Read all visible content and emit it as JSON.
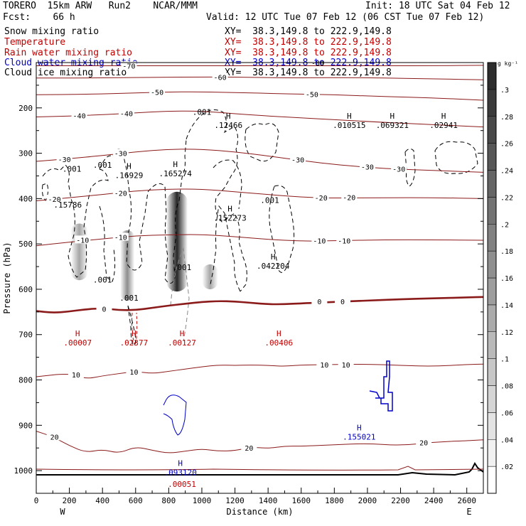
{
  "header": {
    "model": "TORERO  15km ARW   Run2    NCAR/MMM",
    "init": "Init: 18 UTC Sat 04 Feb 12",
    "fcst": "Fcst:    66 h",
    "valid": "Valid: 12 UTC Tue 07 Feb 12 (06 CST Tue 07 Feb 12)",
    "fields": [
      {
        "name": "Snow mixing ratio",
        "xy": "XY=  38.3,149.8 to 222.9,149.8",
        "color": "#000000"
      },
      {
        "name": "Temperature",
        "xy": "XY=  38.3,149.8 to 222.9,149.8",
        "color": "#c00000"
      },
      {
        "name": "Rain water mixing ratio",
        "xy": "XY=  38.3,149.8 to 222.9,149.8",
        "color": "#c00000"
      },
      {
        "name": "Cloud water mixing ratio",
        "xy": "XY=  38.3,149.8 to 222.9,149.8",
        "color": "#0000c8"
      },
      {
        "name": "Cloud ice mixing ratio",
        "xy": "XY=  38.3,149.8 to 222.9,149.8",
        "color": "#000000"
      }
    ]
  },
  "chart_data": {
    "type": "cross-section",
    "xlabel": "Distance (km)",
    "ylabel": "Pressure (hPa)",
    "xlim": [
      0,
      2700
    ],
    "ylim": [
      1050,
      100
    ],
    "xticks": [
      "0",
      "200",
      "400",
      "600",
      "800",
      "1000",
      "1200",
      "1400",
      "1600",
      "1800",
      "2000",
      "2200",
      "2400",
      "2600"
    ],
    "yticks": [
      "200",
      "300",
      "400",
      "500",
      "600",
      "700",
      "800",
      "900",
      "1000"
    ],
    "end_labels": {
      "left": "W",
      "right": "E"
    },
    "colorbar": {
      "unit": "g kg⁻¹",
      "ticks": [
        ".02",
        ".04",
        ".06",
        ".08",
        ".1",
        ".12",
        ".14",
        ".16",
        ".18",
        ".2",
        ".22",
        ".24",
        ".26",
        ".28",
        ".3"
      ],
      "vmin": 0.0,
      "vmax": 0.32
    },
    "temperature_contours": [
      {
        "value": -70,
        "p": [
          [
            0,
            107
          ],
          [
            300,
            107
          ],
          [
            600,
            107
          ],
          [
            900,
            107
          ],
          [
            1200,
            107
          ],
          [
            1500,
            107
          ],
          [
            1800,
            107
          ],
          [
            2100,
            107
          ],
          [
            2400,
            107
          ],
          [
            2700,
            106
          ]
        ],
        "labels": [
          {
            "x": 560,
            "p": 107,
            "text": "-70"
          }
        ]
      },
      {
        "value": -60,
        "p": [
          [
            0,
            134
          ],
          [
            300,
            134
          ],
          [
            600,
            133
          ],
          [
            900,
            132
          ],
          [
            1200,
            132
          ],
          [
            1500,
            134
          ],
          [
            1800,
            133
          ],
          [
            2100,
            134
          ],
          [
            2400,
            136
          ],
          [
            2700,
            138
          ]
        ],
        "labels": [
          {
            "x": 1110,
            "p": 132,
            "text": "-60"
          }
        ]
      },
      {
        "value": -50,
        "p": [
          [
            0,
            171
          ],
          [
            300,
            170
          ],
          [
            600,
            167
          ],
          [
            900,
            164
          ],
          [
            1200,
            166
          ],
          [
            1500,
            169
          ],
          [
            1800,
            171
          ],
          [
            2100,
            175
          ],
          [
            2400,
            178
          ],
          [
            2700,
            183
          ]
        ],
        "labels": [
          {
            "x": 730,
            "p": 165,
            "text": "-50"
          },
          {
            "x": 1665,
            "p": 170,
            "text": "-50"
          }
        ]
      },
      {
        "value": -40,
        "p": [
          [
            0,
            220
          ],
          [
            200,
            218
          ],
          [
            400,
            215
          ],
          [
            600,
            211
          ],
          [
            800,
            207
          ],
          [
            1000,
            207
          ],
          [
            1200,
            213
          ],
          [
            1400,
            218
          ],
          [
            1600,
            222
          ],
          [
            1800,
            226
          ],
          [
            2100,
            232
          ],
          [
            2400,
            237
          ],
          [
            2700,
            242
          ]
        ],
        "labels": [
          {
            "x": 260,
            "p": 217,
            "text": "-40"
          },
          {
            "x": 545,
            "p": 212,
            "text": "-40"
          }
        ]
      },
      {
        "value": -30,
        "p": [
          [
            0,
            318
          ],
          [
            200,
            312
          ],
          [
            400,
            305
          ],
          [
            600,
            297
          ],
          [
            800,
            291
          ],
          [
            1000,
            291
          ],
          [
            1200,
            297
          ],
          [
            1400,
            306
          ],
          [
            1600,
            316
          ],
          [
            1800,
            325
          ],
          [
            2100,
            334
          ],
          [
            2400,
            338
          ],
          [
            2700,
            342
          ]
        ],
        "labels": [
          {
            "x": 170,
            "p": 313,
            "text": "-30"
          },
          {
            "x": 510,
            "p": 300,
            "text": "-30"
          },
          {
            "x": 1580,
            "p": 314,
            "text": "-30"
          },
          {
            "x": 2000,
            "p": 330,
            "text": "-30"
          },
          {
            "x": 2190,
            "p": 334,
            "text": "-30"
          }
        ]
      },
      {
        "value": -20,
        "p": [
          [
            0,
            405
          ],
          [
            200,
            398
          ],
          [
            400,
            391
          ],
          [
            600,
            383
          ],
          [
            800,
            379
          ],
          [
            1000,
            379
          ],
          [
            1200,
            385
          ],
          [
            1400,
            391
          ],
          [
            1600,
            397
          ],
          [
            1800,
            399
          ],
          [
            2100,
            398
          ],
          [
            2400,
            398
          ],
          [
            2700,
            400
          ]
        ],
        "labels": [
          {
            "x": 110,
            "p": 401,
            "text": "-20"
          },
          {
            "x": 510,
            "p": 388,
            "text": "-20"
          },
          {
            "x": 1720,
            "p": 398,
            "text": "-20"
          },
          {
            "x": 1890,
            "p": 397,
            "text": "-20"
          }
        ]
      },
      {
        "value": -10,
        "p": [
          [
            0,
            504
          ],
          [
            200,
            496
          ],
          [
            400,
            489
          ],
          [
            600,
            482
          ],
          [
            800,
            480
          ],
          [
            1000,
            479
          ],
          [
            1200,
            484
          ],
          [
            1400,
            490
          ],
          [
            1600,
            494
          ],
          [
            1800,
            493
          ],
          [
            2100,
            491
          ],
          [
            2400,
            491
          ],
          [
            2700,
            492
          ]
        ],
        "labels": [
          {
            "x": 280,
            "p": 491,
            "text": "-10"
          },
          {
            "x": 510,
            "p": 485,
            "text": "-10"
          },
          {
            "x": 1710,
            "p": 493,
            "text": "-10"
          },
          {
            "x": 1860,
            "p": 493,
            "text": "-10"
          }
        ]
      },
      {
        "value": 0,
        "p": [
          [
            0,
            648
          ],
          [
            100,
            652
          ],
          [
            200,
            649
          ],
          [
            300,
            644
          ],
          [
            400,
            642
          ],
          [
            500,
            646
          ],
          [
            600,
            646
          ],
          [
            700,
            641
          ],
          [
            800,
            636
          ],
          [
            900,
            632
          ],
          [
            1000,
            628
          ],
          [
            1100,
            626
          ],
          [
            1200,
            627
          ],
          [
            1300,
            630
          ],
          [
            1400,
            633
          ],
          [
            1500,
            633
          ],
          [
            1600,
            631
          ],
          [
            1800,
            628
          ],
          [
            2000,
            625
          ],
          [
            2200,
            622
          ],
          [
            2400,
            620
          ],
          [
            2600,
            618
          ],
          [
            2700,
            617
          ]
        ],
        "labels": [
          {
            "x": 410,
            "p": 643,
            "text": "0"
          },
          {
            "x": 1710,
            "p": 627,
            "text": "0"
          },
          {
            "x": 1850,
            "p": 627,
            "text": "0"
          }
        ]
      },
      {
        "value": 10,
        "p": [
          [
            0,
            793
          ],
          [
            200,
            785
          ],
          [
            300,
            798
          ],
          [
            400,
            791
          ],
          [
            500,
            786
          ],
          [
            600,
            781
          ],
          [
            700,
            786
          ],
          [
            800,
            781
          ],
          [
            900,
            776
          ],
          [
            1000,
            771
          ],
          [
            1100,
            767
          ],
          [
            1200,
            768
          ],
          [
            1300,
            767
          ],
          [
            1400,
            768
          ],
          [
            1500,
            770
          ],
          [
            1600,
            767
          ],
          [
            1800,
            766
          ],
          [
            2000,
            765
          ],
          [
            2200,
            768
          ],
          [
            2400,
            770
          ],
          [
            2600,
            766
          ],
          [
            2700,
            765
          ]
        ],
        "labels": [
          {
            "x": 240,
            "p": 788,
            "text": "10"
          },
          {
            "x": 590,
            "p": 782,
            "text": "10"
          },
          {
            "x": 1740,
            "p": 766,
            "text": "10"
          },
          {
            "x": 1870,
            "p": 766,
            "text": "10"
          }
        ]
      },
      {
        "value": 20,
        "p": [
          [
            0,
            913
          ],
          [
            100,
            925
          ],
          [
            200,
            945
          ],
          [
            300,
            960
          ],
          [
            400,
            953
          ],
          [
            500,
            962
          ],
          [
            600,
            947
          ],
          [
            700,
            955
          ],
          [
            800,
            962
          ],
          [
            900,
            957
          ],
          [
            1000,
            952
          ],
          [
            1100,
            957
          ],
          [
            1200,
            956
          ],
          [
            1300,
            948
          ],
          [
            1400,
            951
          ],
          [
            1500,
            946
          ],
          [
            1600,
            946
          ],
          [
            1800,
            943
          ],
          [
            2000,
            940
          ],
          [
            2200,
            945
          ],
          [
            2400,
            937
          ],
          [
            2600,
            934
          ],
          [
            2700,
            932
          ]
        ],
        "labels": [
          {
            "x": 110,
            "p": 925,
            "text": "20"
          },
          {
            "x": 1285,
            "p": 950,
            "text": "20"
          },
          {
            "x": 2340,
            "p": 938,
            "text": "20"
          }
        ]
      }
    ],
    "upper_contour_labels": [
      {
        "x": 1700,
        "p": 101,
        "text": "-80"
      }
    ],
    "rain_water": {
      "color": "#c00000",
      "maxima": [
        {
          "x": 250,
          "p": 724,
          "text": ".00007",
          "h": "H"
        },
        {
          "x": 590,
          "p": 724,
          "text": ".02377",
          "h": "H"
        },
        {
          "x": 880,
          "p": 724,
          "text": ".00127",
          "h": "H"
        },
        {
          "x": 1465,
          "p": 724,
          "text": ".00406",
          "h": "H"
        },
        {
          "x": 880,
          "p": 1036,
          "text": ".00051",
          "h": ""
        }
      ]
    },
    "cloud_water": {
      "color": "#0000c8",
      "maxima": [
        {
          "x": 870,
          "p": 1010,
          "text": ".093120",
          "h": "H"
        },
        {
          "x": 1950,
          "p": 932,
          "text": ".155021",
          "h": "H"
        }
      ]
    },
    "cloud_ice": {
      "color": "#000000",
      "maxima": [
        {
          "x": 215,
          "p": 341,
          "text": ".001",
          "h": ""
        },
        {
          "x": 1000,
          "p": 215,
          "text": ".001",
          "h": ""
        },
        {
          "x": 1160,
          "p": 244,
          "text": ".12466",
          "h": "H"
        },
        {
          "x": 1890,
          "p": 244,
          "text": ".010515",
          "h": "H"
        },
        {
          "x": 2150,
          "p": 244,
          "text": ".069321",
          "h": "H"
        },
        {
          "x": 2460,
          "p": 244,
          "text": ".02941",
          "h": "H"
        }
      ]
    },
    "snow": {
      "color": "#000000",
      "maxima": [
        {
          "x": 190,
          "p": 420,
          "text": ".15786",
          "h": ""
        },
        {
          "x": 560,
          "p": 355,
          "text": ".16929",
          "h": "H"
        },
        {
          "x": 840,
          "p": 351,
          "text": ".165274",
          "h": "H"
        },
        {
          "x": 1170,
          "p": 449,
          "text": ".152273",
          "h": "H"
        },
        {
          "x": 1430,
          "p": 555,
          "text": ".042204",
          "h": "H"
        },
        {
          "x": 1410,
          "p": 410,
          "text": ".001",
          "h": ""
        },
        {
          "x": 400,
          "p": 332,
          "text": ".001",
          "h": ""
        },
        {
          "x": 400,
          "p": 585,
          "text": ".001",
          "h": ""
        },
        {
          "x": 560,
          "p": 625,
          "text": ".001",
          "h": ""
        },
        {
          "x": 880,
          "p": 558,
          "text": ".001",
          "h": ""
        }
      ]
    },
    "snow_shading": [
      {
        "x": 260,
        "pTop": 455,
        "pBot": 580,
        "w": 24,
        "a": 0.35
      },
      {
        "x": 550,
        "pTop": 470,
        "pBot": 625,
        "w": 20,
        "a": 0.45
      },
      {
        "x": 850,
        "pTop": 385,
        "pBot": 605,
        "w": 30,
        "a": 0.85
      },
      {
        "x": 1050,
        "pTop": 545,
        "pBot": 600,
        "w": 22,
        "a": 0.35
      }
    ]
  }
}
